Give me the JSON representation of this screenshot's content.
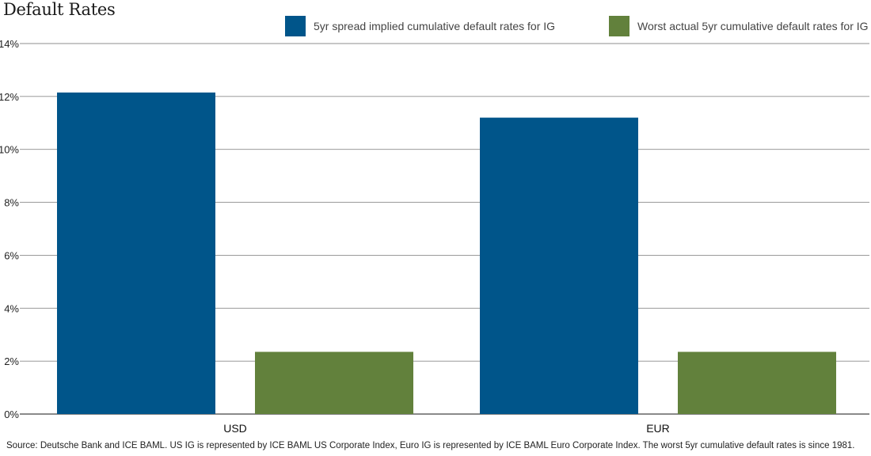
{
  "chart_data": {
    "type": "bar",
    "title": "Default Rates",
    "categories": [
      "USD",
      "EUR"
    ],
    "series": [
      {
        "name": "5yr spread implied cumulative default rates for IG",
        "color": "#00558a",
        "values": [
          12.15,
          11.2
        ]
      },
      {
        "name": "Worst actual 5yr cumulative default rates for IG",
        "color": "#62813c",
        "values": [
          2.35,
          2.35
        ]
      }
    ],
    "ylim": [
      0,
      14
    ],
    "yticks": [
      0,
      2,
      4,
      6,
      8,
      10,
      12,
      14
    ],
    "ytick_labels": [
      "0%",
      "2%",
      "4%",
      "6%",
      "8%",
      "10%",
      "12%",
      "14%"
    ],
    "xlabel": "",
    "ylabel": "",
    "grid": true,
    "legend_position": "top-right"
  },
  "footnote": "Source: Deutsche Bank and ICE BAML. US IG is represented by ICE BAML US Corporate Index, Euro IG is represented by ICE BAML Euro Corporate Index. The worst 5yr cumulative default rates is since 1981."
}
